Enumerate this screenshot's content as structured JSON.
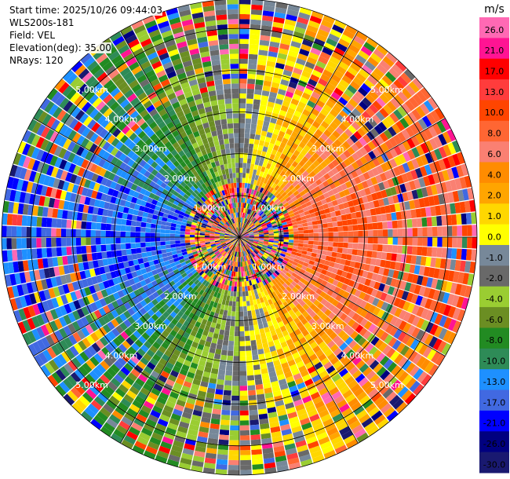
{
  "header": {
    "start_time": "Start time: 2025/10/26 09:44:03",
    "instrument": "WLS200s-181",
    "field": "Field: VEL",
    "elevation": "Elevation(deg): 35.00",
    "nrays": "NRays: 120"
  },
  "chart_data": {
    "type": "heatmap",
    "projection": "polar-ppi",
    "field": "VEL",
    "units": "m/s",
    "nrays": 120,
    "elevation_deg": 35.0,
    "range_rings_km": [
      1,
      2,
      3,
      4,
      5
    ],
    "ring_labels": [
      "1.00km",
      "2.00km",
      "3.00km",
      "4.00km",
      "5.00km"
    ],
    "max_range_km": 5.7,
    "grid": true,
    "colorbar": {
      "unit_label": "m/s",
      "placement": "right",
      "ticks": [
        "26.0",
        "21.0",
        "17.0",
        "13.0",
        "10.0",
        "8.0",
        "6.0",
        "4.0",
        "2.0",
        "1.0",
        "0.0",
        "-1.0",
        "-2.0",
        "-4.0",
        "-6.0",
        "-8.0",
        "-10.0",
        "-13.0",
        "-17.0",
        "-21.0",
        "-26.0",
        "-30.0"
      ],
      "colors": [
        "#ff69b4",
        "#ff1493",
        "#ff0000",
        "#ff3c3c",
        "#ff4500",
        "#ff6633",
        "#fa8072",
        "#ff8c00",
        "#ffa500",
        "#ffd700",
        "#ffff00",
        "#778899",
        "#696969",
        "#9acd32",
        "#6b8e23",
        "#228b22",
        "#2e8b57",
        "#1e90ff",
        "#4169e1",
        "#0000ff",
        "#000080",
        "#191970"
      ]
    }
  }
}
